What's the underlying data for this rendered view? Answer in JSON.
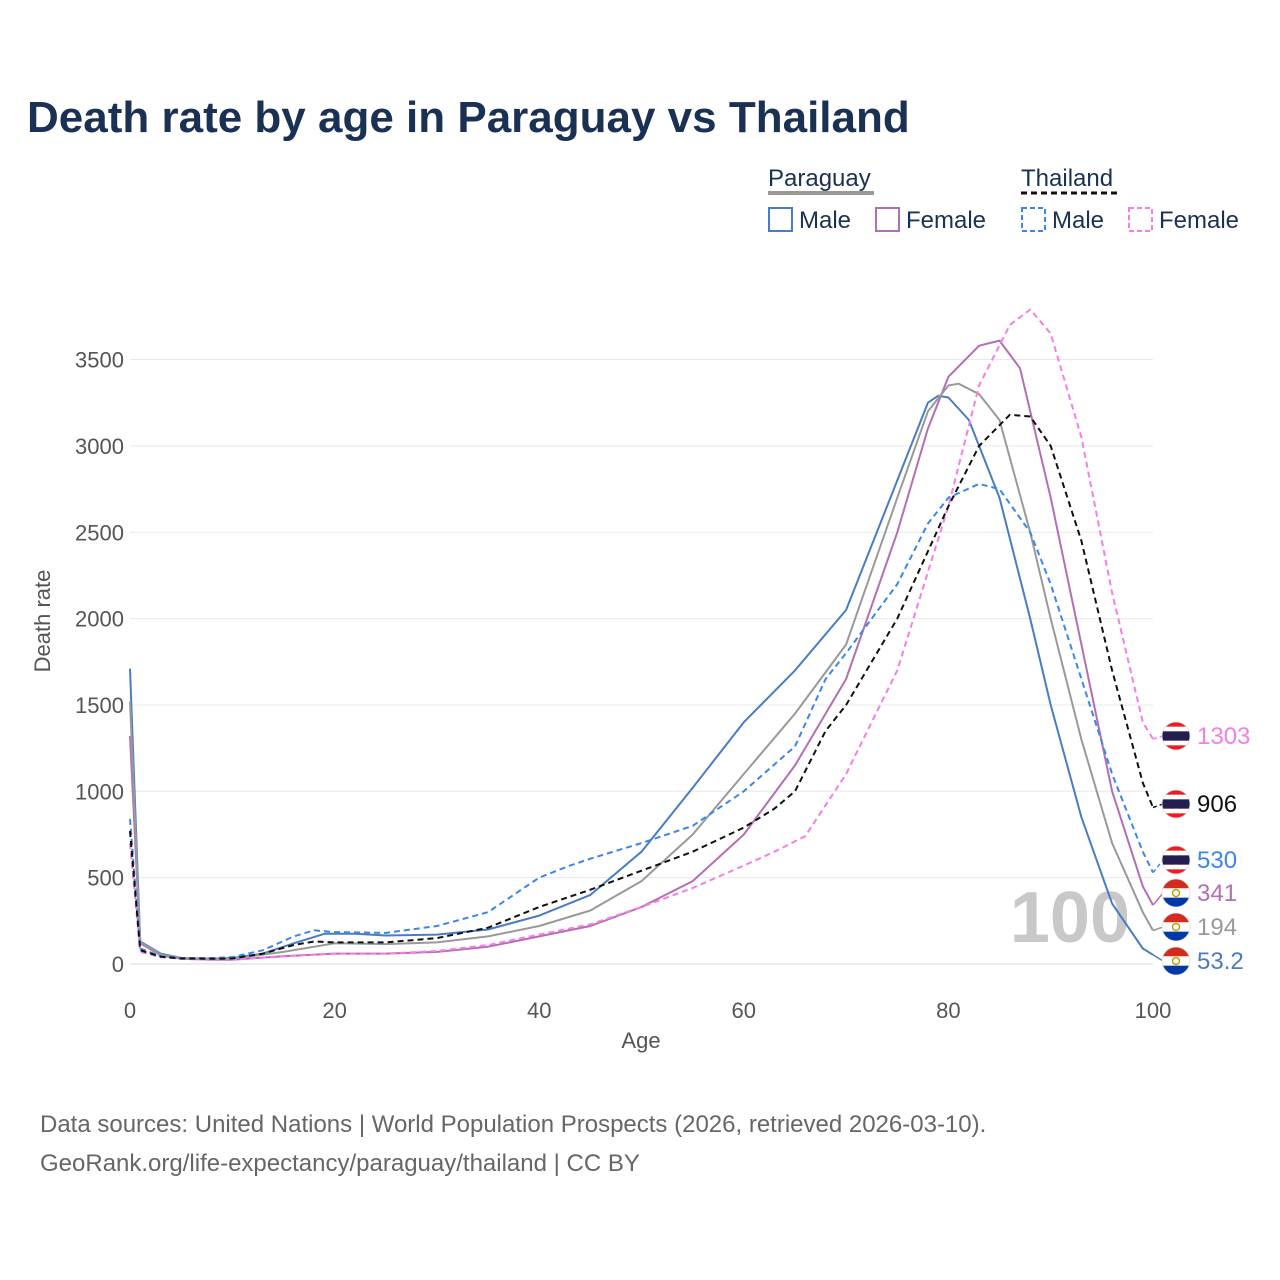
{
  "title": "Death rate by age in Paraguay vs Thailand",
  "legend": {
    "groups": [
      {
        "country": "Paraguay",
        "line_color": "#999999",
        "line_dash": false,
        "items": [
          {
            "label": "Male",
            "color": "#4a7cc4",
            "dashed": false
          },
          {
            "label": "Female",
            "color": "#b36fb3",
            "dashed": false
          }
        ]
      },
      {
        "country": "Thailand",
        "line_color": "#111111",
        "line_dash": true,
        "items": [
          {
            "label": "Male",
            "color": "#3c86e8",
            "dashed": true
          },
          {
            "label": "Female",
            "color": "#f47ee8",
            "dashed": true
          }
        ]
      }
    ]
  },
  "watermark": "100",
  "source_line1": "Data sources: United Nations | World Population Prospects (2026, retrieved 2026-03-10).",
  "source_line2": "GeoRank.org/life-expectancy/paraguay/thailand | CC BY",
  "chart_data": {
    "type": "line",
    "title": "Death rate by age in Paraguay vs Thailand",
    "xlabel": "Age",
    "ylabel": "Death rate",
    "xlim": [
      0,
      100
    ],
    "ylim": [
      0,
      3800
    ],
    "xticks": [
      0,
      20,
      40,
      60,
      80,
      100
    ],
    "yticks": [
      0,
      500,
      1000,
      1500,
      2000,
      2500,
      3000,
      3500
    ],
    "grid": true,
    "series": [
      {
        "name": "Paraguay Male",
        "color": "#4a7cc4",
        "dashed": false,
        "end_label": "53.2",
        "flag": "paraguay",
        "x": [
          0,
          1,
          3,
          5,
          8,
          10,
          13,
          16,
          19,
          22,
          25,
          30,
          35,
          40,
          45,
          50,
          55,
          60,
          65,
          70,
          75,
          78,
          79,
          80,
          82,
          85,
          88,
          90,
          93,
          96,
          99,
          100
        ],
        "y": [
          1710,
          130,
          60,
          35,
          30,
          35,
          60,
          120,
          175,
          175,
          165,
          170,
          200,
          280,
          400,
          650,
          1020,
          1400,
          1700,
          2050,
          2800,
          3250,
          3290,
          3280,
          3150,
          2700,
          2000,
          1500,
          850,
          350,
          90,
          53.2
        ]
      },
      {
        "name": "Paraguay Female",
        "color": "#b36fb3",
        "dashed": false,
        "end_label": "341",
        "flag": "paraguay",
        "x": [
          0,
          1,
          3,
          5,
          8,
          10,
          15,
          20,
          25,
          30,
          35,
          40,
          45,
          50,
          55,
          60,
          65,
          70,
          75,
          78,
          80,
          83,
          85,
          87,
          90,
          93,
          96,
          99,
          100
        ],
        "y": [
          1320,
          120,
          50,
          30,
          25,
          25,
          45,
          60,
          60,
          70,
          100,
          160,
          220,
          330,
          480,
          750,
          1150,
          1650,
          2500,
          3100,
          3400,
          3580,
          3610,
          3450,
          2700,
          1850,
          1000,
          450,
          341
        ]
      },
      {
        "name": "Paraguay Total",
        "color": "#999999",
        "dashed": false,
        "end_label": "194",
        "flag": "paraguay",
        "x": [
          0,
          1,
          3,
          5,
          8,
          10,
          15,
          20,
          25,
          30,
          35,
          40,
          45,
          50,
          55,
          60,
          65,
          70,
          75,
          78,
          80,
          81,
          83,
          85,
          88,
          90,
          93,
          96,
          99,
          100
        ],
        "y": [
          1520,
          125,
          55,
          33,
          28,
          30,
          70,
          120,
          115,
          125,
          160,
          220,
          310,
          480,
          750,
          1100,
          1450,
          1850,
          2700,
          3200,
          3350,
          3360,
          3300,
          3150,
          2500,
          2000,
          1300,
          700,
          300,
          194
        ]
      },
      {
        "name": "Thailand Male",
        "color": "#3c86e8",
        "dashed": true,
        "end_label": "530",
        "flag": "thailand",
        "x": [
          0,
          1,
          3,
          5,
          8,
          10,
          13,
          16,
          18,
          20,
          25,
          30,
          35,
          40,
          43,
          45,
          50,
          55,
          60,
          65,
          68,
          70,
          75,
          78,
          80,
          83,
          85,
          88,
          90,
          93,
          96,
          99,
          100
        ],
        "y": [
          840,
          90,
          45,
          35,
          35,
          40,
          80,
          160,
          195,
          185,
          180,
          220,
          300,
          500,
          570,
          610,
          700,
          800,
          1000,
          1260,
          1650,
          1800,
          2200,
          2550,
          2700,
          2780,
          2750,
          2500,
          2200,
          1650,
          1100,
          650,
          530
        ]
      },
      {
        "name": "Thailand Female",
        "color": "#f47ee8",
        "dashed": true,
        "end_label": "1303",
        "flag": "thailand",
        "x": [
          0,
          1,
          3,
          5,
          8,
          10,
          15,
          20,
          25,
          30,
          35,
          40,
          45,
          50,
          55,
          60,
          63,
          66,
          70,
          75,
          80,
          83,
          86,
          88,
          90,
          93,
          96,
          99,
          100
        ],
        "y": [
          700,
          70,
          40,
          30,
          25,
          25,
          45,
          60,
          60,
          75,
          110,
          170,
          230,
          330,
          440,
          570,
          650,
          740,
          1100,
          1700,
          2650,
          3350,
          3700,
          3790,
          3650,
          3050,
          2150,
          1400,
          1303
        ]
      },
      {
        "name": "Thailand Total",
        "color": "#111111",
        "dashed": true,
        "end_label": "906",
        "flag": "thailand",
        "x": [
          0,
          1,
          3,
          5,
          8,
          10,
          13,
          16,
          18,
          20,
          25,
          30,
          35,
          40,
          45,
          50,
          55,
          60,
          63,
          65,
          68,
          70,
          75,
          80,
          83,
          86,
          88,
          90,
          93,
          96,
          99,
          100
        ],
        "y": [
          770,
          80,
          42,
          32,
          30,
          32,
          60,
          110,
          130,
          125,
          125,
          150,
          210,
          330,
          430,
          540,
          650,
          790,
          900,
          1000,
          1350,
          1500,
          2000,
          2650,
          3000,
          3180,
          3170,
          3000,
          2450,
          1700,
          1050,
          906
        ]
      }
    ]
  }
}
